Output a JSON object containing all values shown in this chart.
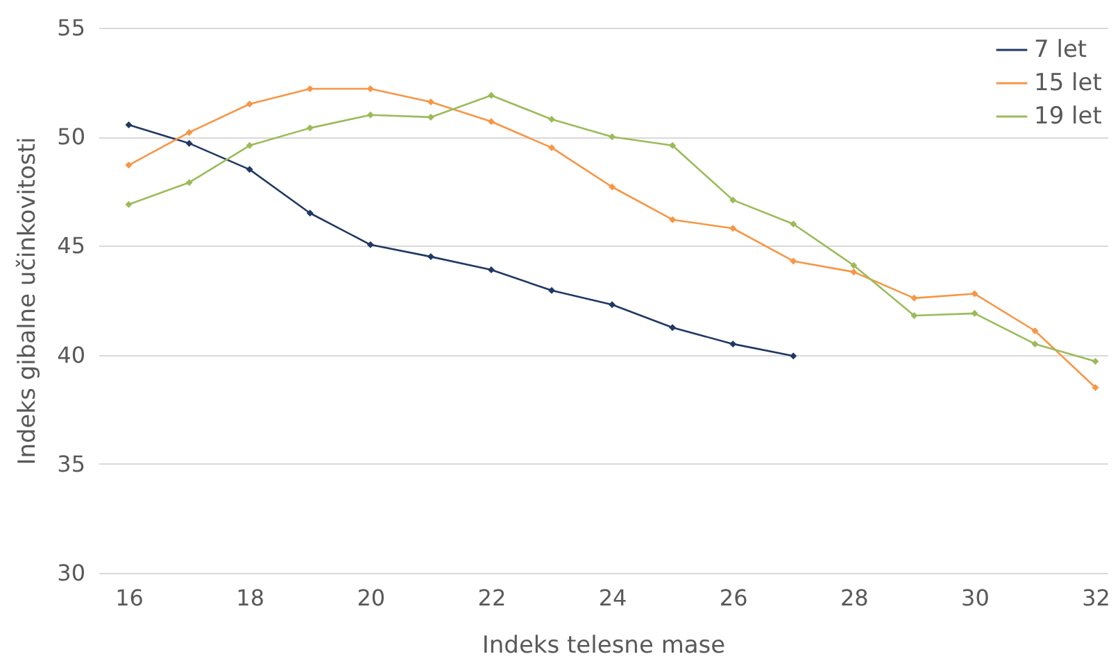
{
  "chart_data": {
    "type": "line",
    "xlabel": "Indeks telesne mase",
    "ylabel": "Indeks gibalne učinkovitosti",
    "xlim": [
      15.5,
      32.2
    ],
    "xticks": [
      16,
      18,
      20,
      22,
      24,
      26,
      28,
      30,
      32
    ],
    "ylim": [
      30,
      55
    ],
    "yticks": [
      30,
      35,
      40,
      45,
      50,
      55
    ],
    "grid": "y",
    "legend": "top right",
    "marker": "diamond",
    "line_style": "solid",
    "series": [
      {
        "name": "7 let",
        "color": "#203864",
        "x": [
          16,
          17,
          18,
          19,
          20,
          21,
          22,
          23,
          24,
          25,
          26,
          27
        ],
        "values": [
          50.55,
          49.7,
          48.5,
          46.5,
          45.05,
          44.5,
          43.9,
          42.95,
          42.3,
          41.25,
          40.5,
          39.95
        ]
      },
      {
        "name": "15 let",
        "color": "#f79646",
        "x": [
          16,
          17,
          18,
          19,
          20,
          21,
          22,
          23,
          24,
          25,
          26,
          27,
          28,
          29,
          30,
          31,
          32
        ],
        "values": [
          48.7,
          50.2,
          51.5,
          52.2,
          52.2,
          51.6,
          50.7,
          49.5,
          47.7,
          46.2,
          45.8,
          44.3,
          43.8,
          42.6,
          42.8,
          41.1,
          38.5
        ]
      },
      {
        "name": "19 let",
        "color": "#9bbb59",
        "x": [
          16,
          17,
          18,
          19,
          20,
          21,
          22,
          23,
          24,
          25,
          26,
          27,
          28,
          29,
          30,
          31,
          32
        ],
        "values": [
          46.9,
          47.9,
          49.6,
          50.4,
          51.0,
          50.9,
          51.9,
          50.8,
          50.0,
          49.6,
          47.1,
          46.0,
          44.1,
          41.8,
          41.9,
          40.5,
          39.7
        ]
      }
    ]
  }
}
